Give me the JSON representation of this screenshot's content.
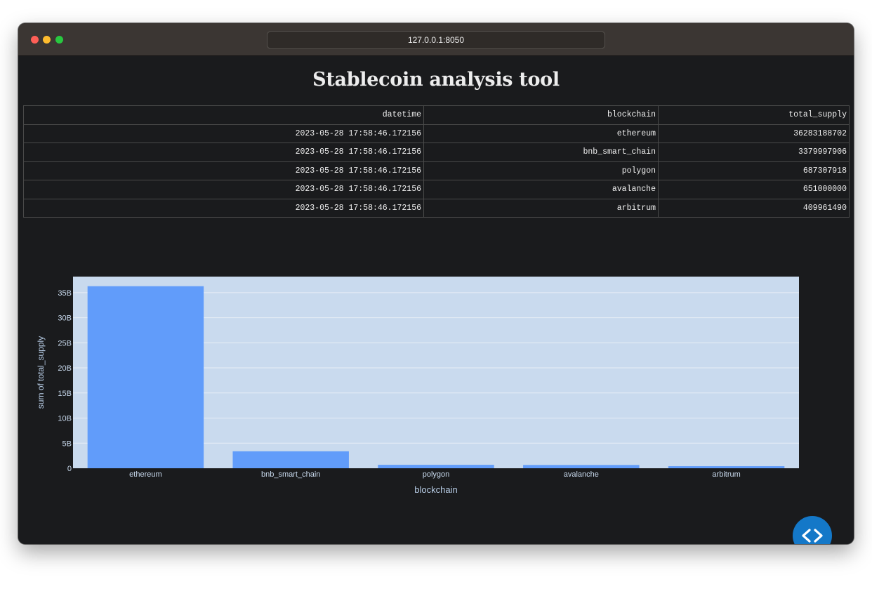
{
  "browser": {
    "url": "127.0.0.1:8050"
  },
  "page": {
    "title": "Stablecoin analysis tool"
  },
  "table": {
    "columns": [
      "datetime",
      "blockchain",
      "total_supply"
    ],
    "rows": [
      [
        "2023-05-28 17:58:46.172156",
        "ethereum",
        "36283188702"
      ],
      [
        "2023-05-28 17:58:46.172156",
        "bnb_smart_chain",
        "3379997906"
      ],
      [
        "2023-05-28 17:58:46.172156",
        "polygon",
        "687307918"
      ],
      [
        "2023-05-28 17:58:46.172156",
        "avalanche",
        "651000000"
      ],
      [
        "2023-05-28 17:58:46.172156",
        "arbitrum",
        "409961490"
      ]
    ]
  },
  "chart_data": {
    "type": "bar",
    "categories": [
      "ethereum",
      "bnb_smart_chain",
      "polygon",
      "avalanche",
      "arbitrum"
    ],
    "values": [
      36283188702,
      3379997906,
      687307918,
      651000000,
      409961490
    ],
    "xlabel": "blockchain",
    "ylabel": "sum of total_supply",
    "ylim": [
      0,
      38193000000
    ],
    "yticks": [
      0,
      5000000000,
      10000000000,
      15000000000,
      20000000000,
      25000000000,
      30000000000,
      35000000000
    ],
    "ytick_labels": [
      "0",
      "5B",
      "10B",
      "15B",
      "20B",
      "25B",
      "30B",
      "35B"
    ],
    "grid": true,
    "colors": {
      "bar": "#619cfa",
      "plot_bg": "#c9daee",
      "grid": "#e8eef6",
      "tick_text": "#c9daee",
      "axis_title": "#b8cde6"
    }
  },
  "dev_tools": {
    "icon": "code-brackets-icon",
    "color": "#1478c8"
  }
}
